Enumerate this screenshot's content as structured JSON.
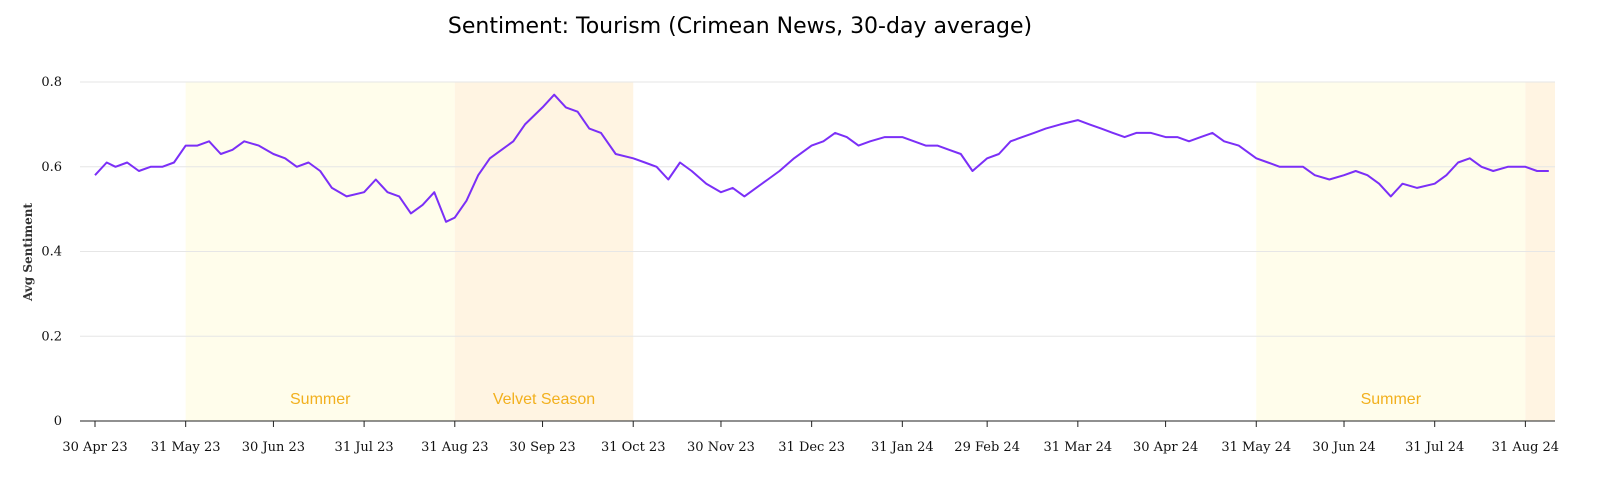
{
  "chart_data": {
    "type": "line",
    "title": "Sentiment: Tourism (Crimean News, 30-day average)",
    "xlabel": "",
    "ylabel": "Avg Sentiment",
    "ylim": [
      0,
      0.8
    ],
    "y_ticks": [
      "0",
      "0.2",
      "0.4",
      "0.6",
      "0.8"
    ],
    "x_ticks": [
      "30 Apr 23",
      "31 May 23",
      "30 Jun 23",
      "31 Jul 23",
      "31 Aug 23",
      "30 Sep 23",
      "31 Oct 23",
      "30 Nov 23",
      "31 Dec 23",
      "31 Jan 24",
      "29 Feb 24",
      "31 Mar 24",
      "30 Apr 24",
      "31 May 24",
      "30 Jun 24",
      "31 Jul 24",
      "31 Aug 24"
    ],
    "grid": true,
    "line_color": "#7B2FF7",
    "bands": [
      {
        "label": "Summer",
        "start": "2023-05-31",
        "end": "2023-08-31",
        "color": "#FFFDEB",
        "label_color": "#F2B01E"
      },
      {
        "label": "Velvet Season",
        "start": "2023-08-31",
        "end": "2023-10-31",
        "color": "#FFF4E2",
        "label_color": "#F2B01E"
      },
      {
        "label": "Summer",
        "start": "2024-05-31",
        "end": "2024-08-31",
        "color": "#FFFDEB",
        "label_color": "#F2B01E"
      },
      {
        "label": "",
        "start": "2024-08-31",
        "end": "2024-09-12",
        "color": "#FFF4E2",
        "label_color": "#F2B01E"
      }
    ],
    "series": [
      {
        "x": [
          "2023-04-30",
          "2023-05-04",
          "2023-05-07",
          "2023-05-11",
          "2023-05-15",
          "2023-05-19",
          "2023-05-23",
          "2023-05-27",
          "2023-05-31",
          "2023-06-04",
          "2023-06-08",
          "2023-06-12",
          "2023-06-16",
          "2023-06-20",
          "2023-06-25",
          "2023-06-30",
          "2023-07-04",
          "2023-07-08",
          "2023-07-12",
          "2023-07-16",
          "2023-07-20",
          "2023-07-25",
          "2023-07-31",
          "2023-08-04",
          "2023-08-08",
          "2023-08-12",
          "2023-08-16",
          "2023-08-20",
          "2023-08-24",
          "2023-08-28",
          "2023-08-31",
          "2023-09-04",
          "2023-09-08",
          "2023-09-12",
          "2023-09-16",
          "2023-09-20",
          "2023-09-24",
          "2023-09-30",
          "2023-10-04",
          "2023-10-08",
          "2023-10-12",
          "2023-10-16",
          "2023-10-20",
          "2023-10-25",
          "2023-10-31",
          "2023-11-04",
          "2023-11-08",
          "2023-11-12",
          "2023-11-16",
          "2023-11-20",
          "2023-11-25",
          "2023-11-30",
          "2023-12-04",
          "2023-12-08",
          "2023-12-12",
          "2023-12-16",
          "2023-12-20",
          "2023-12-25",
          "2023-12-31",
          "2024-01-04",
          "2024-01-08",
          "2024-01-12",
          "2024-01-16",
          "2024-01-20",
          "2024-01-25",
          "2024-01-31",
          "2024-02-04",
          "2024-02-08",
          "2024-02-12",
          "2024-02-16",
          "2024-02-20",
          "2024-02-24",
          "2024-02-29",
          "2024-03-04",
          "2024-03-08",
          "2024-03-12",
          "2024-03-16",
          "2024-03-20",
          "2024-03-25",
          "2024-03-31",
          "2024-04-04",
          "2024-04-08",
          "2024-04-12",
          "2024-04-16",
          "2024-04-20",
          "2024-04-25",
          "2024-04-30",
          "2024-05-04",
          "2024-05-08",
          "2024-05-12",
          "2024-05-16",
          "2024-05-20",
          "2024-05-25",
          "2024-05-31",
          "2024-06-04",
          "2024-06-08",
          "2024-06-12",
          "2024-06-16",
          "2024-06-20",
          "2024-06-25",
          "2024-06-30",
          "2024-07-04",
          "2024-07-08",
          "2024-07-12",
          "2024-07-16",
          "2024-07-20",
          "2024-07-25",
          "2024-07-31",
          "2024-08-04",
          "2024-08-08",
          "2024-08-12",
          "2024-08-16",
          "2024-08-20",
          "2024-08-25",
          "2024-08-31",
          "2024-09-04",
          "2024-09-08"
        ],
        "y": [
          0.58,
          0.61,
          0.6,
          0.61,
          0.59,
          0.6,
          0.6,
          0.61,
          0.65,
          0.65,
          0.66,
          0.63,
          0.64,
          0.66,
          0.65,
          0.63,
          0.62,
          0.6,
          0.61,
          0.59,
          0.55,
          0.53,
          0.54,
          0.57,
          0.54,
          0.53,
          0.49,
          0.51,
          0.54,
          0.47,
          0.48,
          0.52,
          0.58,
          0.62,
          0.64,
          0.66,
          0.7,
          0.74,
          0.77,
          0.74,
          0.73,
          0.69,
          0.68,
          0.63,
          0.62,
          0.61,
          0.6,
          0.57,
          0.61,
          0.59,
          0.56,
          0.54,
          0.55,
          0.53,
          0.55,
          0.57,
          0.59,
          0.62,
          0.65,
          0.66,
          0.68,
          0.67,
          0.65,
          0.66,
          0.67,
          0.67,
          0.66,
          0.65,
          0.65,
          0.64,
          0.63,
          0.59,
          0.62,
          0.63,
          0.66,
          0.67,
          0.68,
          0.69,
          0.7,
          0.71,
          0.7,
          0.69,
          0.68,
          0.67,
          0.68,
          0.68,
          0.67,
          0.67,
          0.66,
          0.67,
          0.68,
          0.66,
          0.65,
          0.62,
          0.61,
          0.6,
          0.6,
          0.6,
          0.58,
          0.57,
          0.58,
          0.59,
          0.58,
          0.56,
          0.53,
          0.56,
          0.55,
          0.56,
          0.58,
          0.61,
          0.62,
          0.6,
          0.59,
          0.6,
          0.6,
          0.59,
          0.59
        ]
      }
    ]
  }
}
